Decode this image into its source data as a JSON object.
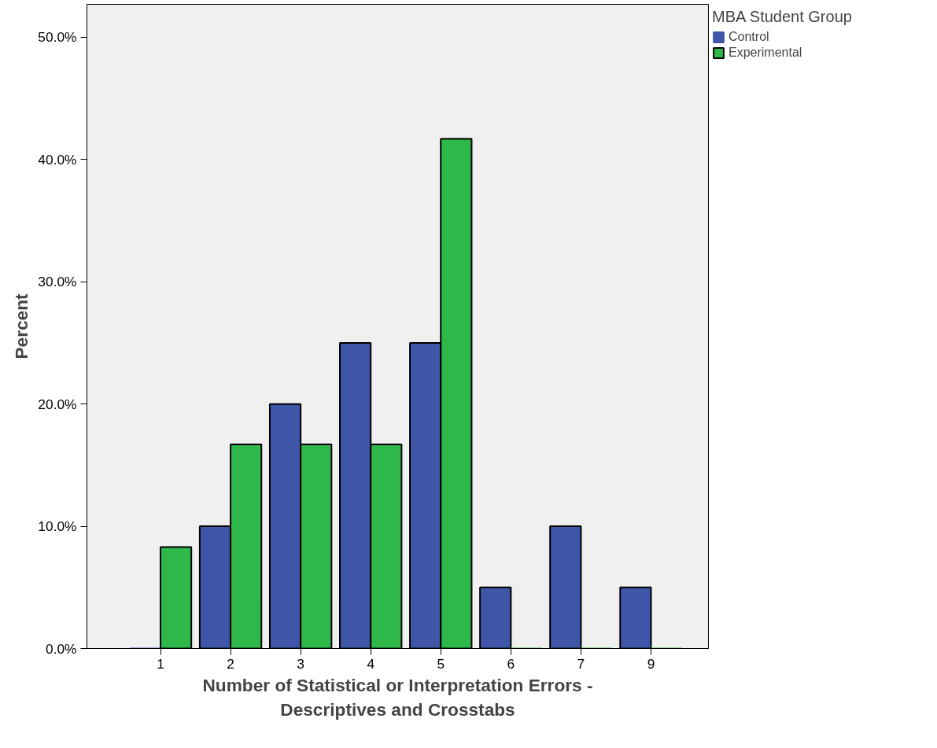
{
  "chart_data": {
    "type": "bar",
    "xlabel": "Number of Statistical or Interpretation Errors -\nDescriptives and Crosstabs",
    "ylabel": "Percent",
    "legend_title": "MBA Student Group",
    "categories": [
      "1",
      "2",
      "3",
      "4",
      "5",
      "6",
      "7",
      "9"
    ],
    "series": [
      {
        "name": "Control",
        "color": "#3f56a8",
        "values": [
          0,
          10,
          20,
          25,
          25,
          5,
          10,
          5
        ]
      },
      {
        "name": "Experimental",
        "color": "#2fb84a",
        "values": [
          8.3,
          16.7,
          16.7,
          16.7,
          41.7,
          0,
          0,
          0
        ]
      }
    ],
    "ylim": [
      0,
      52.7
    ],
    "yticks": [
      {
        "value": 0,
        "label": "0.0%"
      },
      {
        "value": 10,
        "label": "10.0%"
      },
      {
        "value": 20,
        "label": "20.0%"
      },
      {
        "value": 30,
        "label": "30.0%"
      },
      {
        "value": 40,
        "label": "40.0%"
      },
      {
        "value": 50,
        "label": "50.0%"
      }
    ],
    "grid": false,
    "legend": "top right"
  }
}
